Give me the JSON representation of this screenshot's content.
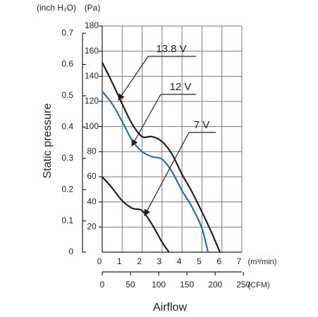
{
  "chart_data": {
    "type": "line",
    "y_axis_label": "Static pressure",
    "x_axis_label": "Airflow",
    "x_unit": "(m³/min)",
    "x2_unit": "(CFM)",
    "y_unit": "(Pa)",
    "y2_unit": "(inch H₂O)",
    "xlim": [
      0,
      7
    ],
    "xticks": [
      0,
      1,
      2,
      3,
      4,
      5,
      6,
      7
    ],
    "x2lim": [
      0,
      247.2
    ],
    "x2ticks": [
      0,
      50,
      100,
      150,
      200,
      250
    ],
    "ylim": [
      0,
      180
    ],
    "yticks": [
      20,
      40,
      60,
      80,
      100,
      120,
      140,
      160,
      180
    ],
    "y2lim": [
      0,
      0.7228
    ],
    "y2ticks": [
      0,
      0.1,
      0.2,
      0.3,
      0.4,
      0.5,
      0.6,
      0.7
    ],
    "grid": true,
    "annotations": [
      "13.8 V",
      "12 V",
      "7 V"
    ],
    "series": [
      {
        "name": "13.8 V",
        "color": "#231f20",
        "x": [
          0,
          0.5,
          1,
          1.5,
          2,
          2.5,
          3,
          3.5,
          4,
          4.5,
          5,
          5.5,
          5.9
        ],
        "values": [
          151,
          135,
          118,
          102,
          92,
          92,
          88,
          78,
          62,
          48,
          32,
          15,
          0
        ]
      },
      {
        "name": "12 V",
        "color": "#1a75bc",
        "x": [
          0,
          0.5,
          1,
          1.5,
          2,
          2.5,
          3,
          3.5,
          4,
          4.5,
          5,
          5.3
        ],
        "values": [
          128,
          118,
          104,
          89,
          80,
          76,
          74,
          64,
          49,
          36,
          19,
          0
        ]
      },
      {
        "name": "7 V",
        "color": "#231f20",
        "x": [
          0,
          0.5,
          1,
          1.5,
          2,
          2.5,
          3,
          3.35
        ],
        "values": [
          60,
          51,
          41,
          35,
          33,
          22,
          8,
          0
        ]
      }
    ]
  }
}
